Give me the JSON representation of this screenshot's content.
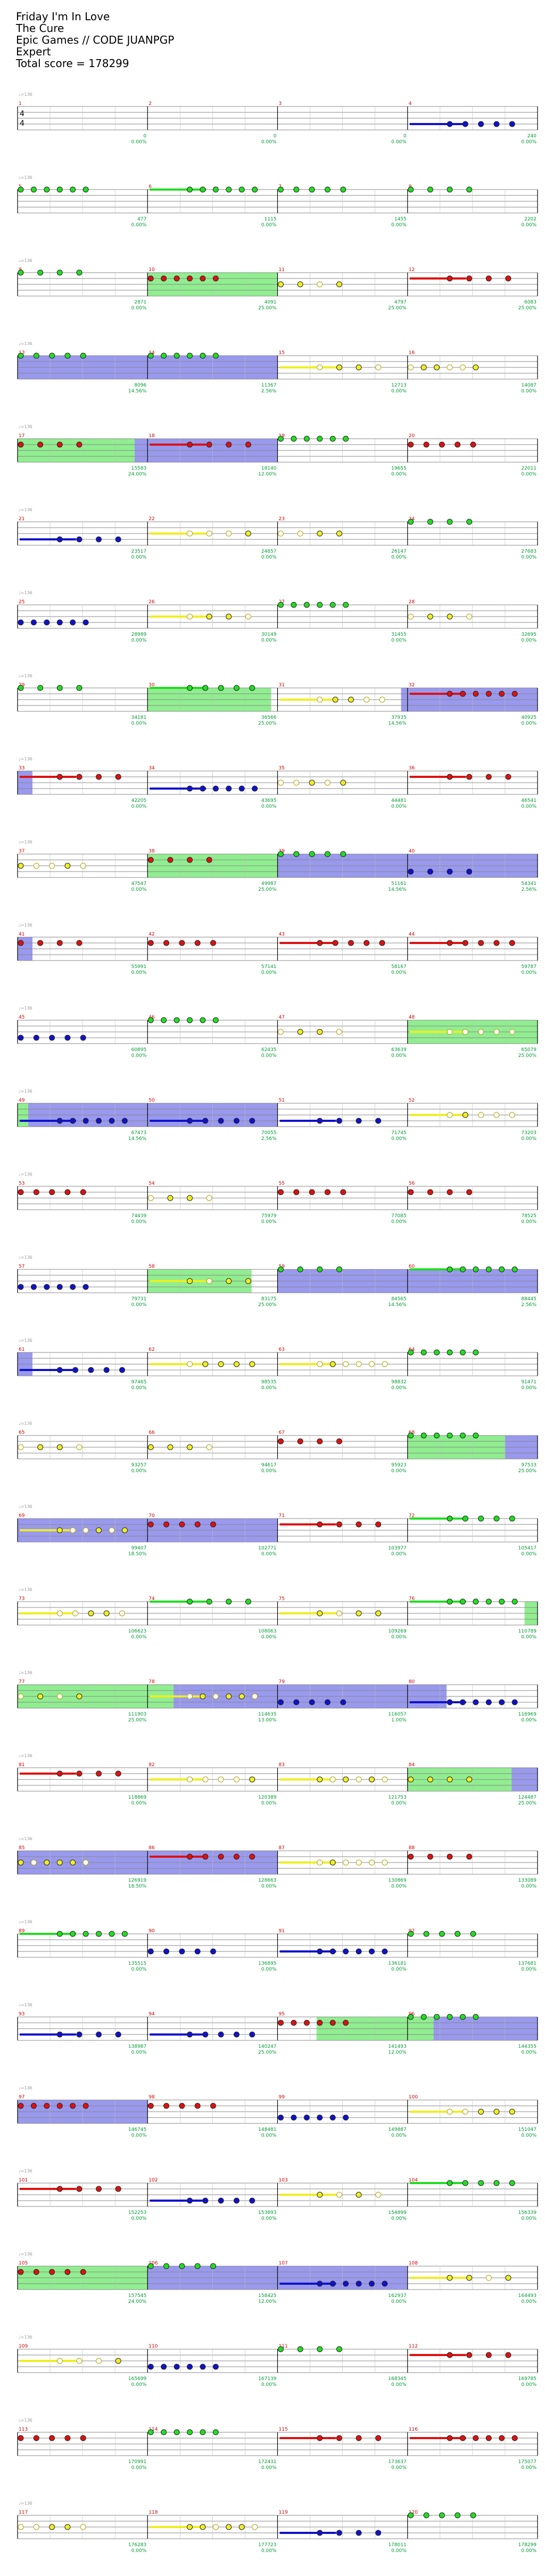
{
  "song": {
    "title": "Friday I'm In Love",
    "artist": "The Cure",
    "charter": "Epic Games // CODE JUANPGP",
    "difficulty": "Expert",
    "total_score_label": "Total score = 178299"
  },
  "tempo_marker": "♩=136",
  "time_signature": [
    "4",
    "4"
  ],
  "colors": {
    "green": "#22dd22",
    "red": "#dd1111",
    "yellow": "#eeee22",
    "blue": "#1111cc",
    "orange": "#ff9900",
    "purple": "#8800aa",
    "starpower_fill": "#90ee90",
    "solo_fill": "#9999ee",
    "measure_number": "#cc0000",
    "score_text": "#009933"
  },
  "measures": [
    {
      "n": "1",
      "score": "0",
      "pct": "0.00%",
      "note": "",
      "stars": "",
      "star_pct": ""
    },
    {
      "n": "2",
      "score": "0",
      "pct": "0.00%",
      "note": "",
      "stars": "",
      "star_pct": ""
    },
    {
      "n": "3",
      "score": "0",
      "pct": "0.00%",
      "note": "",
      "stars": "",
      "star_pct": ""
    },
    {
      "n": "4",
      "score": "240",
      "pct": "0.00%",
      "note": "",
      "stars": "",
      "star_pct": ""
    },
    {
      "n": "5",
      "score": "477",
      "pct": "0.00%",
      "note": "",
      "stars": "",
      "star_pct": ""
    },
    {
      "n": "6",
      "score": "1115",
      "pct": "0.00%",
      "note": "",
      "stars": "",
      "star_pct": ""
    },
    {
      "n": "7",
      "score": "1455",
      "pct": "0.00%",
      "note": "",
      "stars": "",
      "star_pct": ""
    },
    {
      "n": "8",
      "score": "2202",
      "pct": "0.00%",
      "note": "",
      "stars": "",
      "star_pct": ""
    },
    {
      "n": "9",
      "score": "2871",
      "pct": "0.00%",
      "note": "",
      "stars": "",
      "star_pct": ""
    },
    {
      "n": "10",
      "score": "4091",
      "pct": "25.00%",
      "note": "",
      "stars": "",
      "star_pct": ""
    },
    {
      "n": "11",
      "score": "4797",
      "pct": "25.00%",
      "note": "",
      "stars": "",
      "star_pct": ""
    },
    {
      "n": "12",
      "score": "6083",
      "pct": "25.00%",
      "note": "",
      "stars": "",
      "star_pct": ""
    },
    {
      "n": "13",
      "score": "8096",
      "pct": "14.56%",
      "note": "",
      "stars": "",
      "star_pct": ""
    },
    {
      "n": "14",
      "score": "11367",
      "pct": "2.56%",
      "note": "",
      "stars": "",
      "star_pct": ""
    },
    {
      "n": "15",
      "score": "12713",
      "pct": "0.00%",
      "note": "",
      "stars": "",
      "star_pct": ""
    },
    {
      "n": "16",
      "score": "14087",
      "pct": "0.00%",
      "note": "",
      "stars": "",
      "star_pct": ""
    },
    {
      "n": "17",
      "score": "15583",
      "pct": "24.00%",
      "note": "",
      "stars": "",
      "star_pct": ""
    },
    {
      "n": "18",
      "score": "18140",
      "pct": "12.00%",
      "note": "",
      "stars": "",
      "star_pct": ""
    },
    {
      "n": "19",
      "score": "19655",
      "pct": "0.00%",
      "note": "",
      "stars": "",
      "star_pct": ""
    },
    {
      "n": "20",
      "score": "22011",
      "pct": "0.00%",
      "note": "",
      "stars": "",
      "star_pct": ""
    },
    {
      "n": "21",
      "score": "23517",
      "pct": "0.00%",
      "note": "",
      "stars": "",
      "star_pct": ""
    },
    {
      "n": "22",
      "score": "24857",
      "pct": "0.00%",
      "note": "",
      "stars": "",
      "star_pct": ""
    },
    {
      "n": "23",
      "score": "26147",
      "pct": "0.00%",
      "note": "",
      "stars": "",
      "star_pct": ""
    },
    {
      "n": "24",
      "score": "27683",
      "pct": "0.00%",
      "note": "",
      "stars": "",
      "star_pct": ""
    },
    {
      "n": "25",
      "score": "28989",
      "pct": "0.00%",
      "note": "",
      "stars": "",
      "star_pct": ""
    },
    {
      "n": "26",
      "score": "30149",
      "pct": "0.00%",
      "note": "",
      "stars": "",
      "star_pct": ""
    },
    {
      "n": "27",
      "score": "31455",
      "pct": "0.00%",
      "note": "",
      "stars": "",
      "star_pct": ""
    },
    {
      "n": "28",
      "score": "32695",
      "pct": "0.00%",
      "note": "",
      "stars": "",
      "star_pct": ""
    },
    {
      "n": "29",
      "score": "34181",
      "pct": "0.00%",
      "note": "",
      "stars": "",
      "star_pct": ""
    },
    {
      "n": "30",
      "score": "36566",
      "pct": "25.00%",
      "note": "",
      "stars": "",
      "star_pct": ""
    },
    {
      "n": "31",
      "score": "37935",
      "pct": "14.56%",
      "note": "",
      "stars": "",
      "star_pct": ""
    },
    {
      "n": "32",
      "score": "40925",
      "pct": "0.00%",
      "note": "",
      "stars": "",
      "star_pct": ""
    },
    {
      "n": "33",
      "score": "42205",
      "pct": "0.00%",
      "note": "",
      "stars": "",
      "star_pct": ""
    },
    {
      "n": "34",
      "score": "43695",
      "pct": "0.00%",
      "note": "",
      "stars": "",
      "star_pct": ""
    },
    {
      "n": "35",
      "score": "44481",
      "pct": "0.00%",
      "note": "",
      "stars": "",
      "star_pct": ""
    },
    {
      "n": "36",
      "score": "46541",
      "pct": "0.00%",
      "note": "",
      "stars": "",
      "star_pct": ""
    },
    {
      "n": "37",
      "score": "47547",
      "pct": "0.00%",
      "note": "",
      "stars": "",
      "star_pct": ""
    },
    {
      "n": "38",
      "score": "49987",
      "pct": "25.00%",
      "note": "",
      "stars": "",
      "star_pct": ""
    },
    {
      "n": "39",
      "score": "51161",
      "pct": "14.56%",
      "note": "",
      "stars": "",
      "star_pct": ""
    },
    {
      "n": "40",
      "score": "54341",
      "pct": "2.56%",
      "note": "",
      "stars": "",
      "star_pct": ""
    },
    {
      "n": "41",
      "score": "55991",
      "pct": "0.00%",
      "note": "",
      "stars": "",
      "star_pct": ""
    },
    {
      "n": "42",
      "score": "57141",
      "pct": "0.00%",
      "note": "",
      "stars": "",
      "star_pct": ""
    },
    {
      "n": "43",
      "score": "58167",
      "pct": "0.00%",
      "note": "",
      "stars": "",
      "star_pct": ""
    },
    {
      "n": "44",
      "score": "59787",
      "pct": "0.00%",
      "note": "",
      "stars": "",
      "star_pct": ""
    },
    {
      "n": "45",
      "score": "60895",
      "pct": "0.00%",
      "note": "",
      "stars": "",
      "star_pct": ""
    },
    {
      "n": "46",
      "score": "62435",
      "pct": "0.00%",
      "note": "",
      "stars": "",
      "star_pct": ""
    },
    {
      "n": "47",
      "score": "63639",
      "pct": "0.00%",
      "note": "",
      "stars": "",
      "star_pct": ""
    },
    {
      "n": "48",
      "score": "65079",
      "pct": "25.00%",
      "note": "",
      "stars": "",
      "star_pct": ""
    },
    {
      "n": "49",
      "score": "67473",
      "pct": "14.56%",
      "note": "",
      "stars": "",
      "star_pct": ""
    },
    {
      "n": "50",
      "score": "70055",
      "pct": "2.56%",
      "note": "",
      "stars": "",
      "star_pct": ""
    },
    {
      "n": "51",
      "score": "71745",
      "pct": "0.00%",
      "note": "",
      "stars": "",
      "star_pct": ""
    },
    {
      "n": "52",
      "score": "73203",
      "pct": "0.00%",
      "note": "",
      "stars": "",
      "star_pct": ""
    },
    {
      "n": "53",
      "score": "74439",
      "pct": "0.00%",
      "note": "",
      "stars": "",
      "star_pct": ""
    },
    {
      "n": "54",
      "score": "75979",
      "pct": "0.00%",
      "note": "",
      "stars": "",
      "star_pct": ""
    },
    {
      "n": "55",
      "score": "77085",
      "pct": "0.00%",
      "note": "",
      "stars": "",
      "star_pct": ""
    },
    {
      "n": "56",
      "score": "78525",
      "pct": "0.00%",
      "note": "",
      "stars": "",
      "star_pct": ""
    },
    {
      "n": "57",
      "score": "79731",
      "pct": "0.00%",
      "note": "",
      "stars": "",
      "star_pct": ""
    },
    {
      "n": "58",
      "score": "83175",
      "pct": "25.00%",
      "note": "",
      "stars": "",
      "star_pct": ""
    },
    {
      "n": "59",
      "score": "84565",
      "pct": "14.56%",
      "note": "",
      "stars": "",
      "star_pct": ""
    },
    {
      "n": "60",
      "score": "88445",
      "pct": "2.56%",
      "note": "",
      "stars": "",
      "star_pct": ""
    },
    {
      "n": "61",
      "score": "97465",
      "pct": "0.00%",
      "note": "",
      "stars": "",
      "star_pct": ""
    },
    {
      "n": "62",
      "score": "98535",
      "pct": "0.00%",
      "note": "",
      "stars": "",
      "star_pct": ""
    },
    {
      "n": "63",
      "score": "98832",
      "pct": "0.00%",
      "note": "",
      "stars": "",
      "star_pct": ""
    },
    {
      "n": "64",
      "score": "91471",
      "pct": "0.00%",
      "note": "",
      "stars": "",
      "star_pct": ""
    },
    {
      "n": "65",
      "score": "93257",
      "pct": "0.00%",
      "note": "",
      "stars": "",
      "star_pct": ""
    },
    {
      "n": "66",
      "score": "94617",
      "pct": "0.00%",
      "note": "",
      "stars": "",
      "star_pct": ""
    },
    {
      "n": "67",
      "score": "95923",
      "pct": "0.00%",
      "note": "",
      "stars": "",
      "star_pct": ""
    },
    {
      "n": "68",
      "score": "97533",
      "pct": "25.00%",
      "note": "",
      "stars": "",
      "star_pct": ""
    },
    {
      "n": "69",
      "score": "99407",
      "pct": "18.50%",
      "note": "",
      "stars": "",
      "star_pct": ""
    },
    {
      "n": "70",
      "score": "102771",
      "pct": "0.00%",
      "note": "",
      "stars": "",
      "star_pct": ""
    },
    {
      "n": "71",
      "score": "103977",
      "pct": "0.00%",
      "note": "",
      "stars": "",
      "star_pct": ""
    },
    {
      "n": "72",
      "score": "105417",
      "pct": "0.00%",
      "note": "",
      "stars": "",
      "star_pct": ""
    },
    {
      "n": "73",
      "score": "106623",
      "pct": "0.00%",
      "note": "",
      "stars": "",
      "star_pct": ""
    },
    {
      "n": "74",
      "score": "108063",
      "pct": "0.00%",
      "note": "",
      "stars": "",
      "star_pct": ""
    },
    {
      "n": "75",
      "score": "109269",
      "pct": "0.00%",
      "note": "",
      "stars": "",
      "star_pct": ""
    },
    {
      "n": "76",
      "score": "110789",
      "pct": "0.00%",
      "note": "",
      "stars": "",
      "star_pct": ""
    },
    {
      "n": "77",
      "score": "111903",
      "pct": "25.00%",
      "note": "",
      "stars": "",
      "star_pct": ""
    },
    {
      "n": "78",
      "score": "114635",
      "pct": "13.00%",
      "note": "",
      "stars": "",
      "star_pct": ""
    },
    {
      "n": "79",
      "score": "116057",
      "pct": "1.00%",
      "note": "",
      "stars": "",
      "star_pct": ""
    },
    {
      "n": "80",
      "score": "116969",
      "pct": "0.00%",
      "note": "",
      "stars": "",
      "star_pct": ""
    },
    {
      "n": "81",
      "score": "118869",
      "pct": "0.00%",
      "note": "",
      "stars": "",
      "star_pct": ""
    },
    {
      "n": "82",
      "score": "120389",
      "pct": "0.00%",
      "note": "",
      "stars": "",
      "star_pct": ""
    },
    {
      "n": "83",
      "score": "121753",
      "pct": "0.00%",
      "note": "",
      "stars": "",
      "star_pct": ""
    },
    {
      "n": "84",
      "score": "124487",
      "pct": "25.00%",
      "note": "",
      "stars": "",
      "star_pct": ""
    },
    {
      "n": "85",
      "score": "126919",
      "pct": "18.50%",
      "note": "",
      "stars": "",
      "star_pct": ""
    },
    {
      "n": "86",
      "score": "128663",
      "pct": "0.00%",
      "note": "",
      "stars": "",
      "star_pct": ""
    },
    {
      "n": "87",
      "score": "130869",
      "pct": "0.00%",
      "note": "",
      "stars": "",
      "star_pct": ""
    },
    {
      "n": "88",
      "score": "133089",
      "pct": "0.00%",
      "note": "",
      "stars": "",
      "star_pct": ""
    },
    {
      "n": "89",
      "score": "135515",
      "pct": "0.00%",
      "note": "",
      "stars": "",
      "star_pct": ""
    },
    {
      "n": "90",
      "score": "136895",
      "pct": "0.00%",
      "note": "",
      "stars": "",
      "star_pct": ""
    },
    {
      "n": "91",
      "score": "136181",
      "pct": "0.00%",
      "note": "",
      "stars": "",
      "star_pct": ""
    },
    {
      "n": "92",
      "score": "137681",
      "pct": "0.00%",
      "note": "",
      "stars": "",
      "star_pct": ""
    },
    {
      "n": "93",
      "score": "138987",
      "pct": "0.00%",
      "note": "",
      "stars": "",
      "star_pct": ""
    },
    {
      "n": "94",
      "score": "140247",
      "pct": "25.00%",
      "note": "",
      "stars": "",
      "star_pct": ""
    },
    {
      "n": "95",
      "score": "141493",
      "pct": "12.00%",
      "note": "",
      "stars": "",
      "star_pct": ""
    },
    {
      "n": "96",
      "score": "144355",
      "pct": "0.00%",
      "note": "",
      "stars": "",
      "star_pct": ""
    },
    {
      "n": "97",
      "score": "146745",
      "pct": "0.00%",
      "note": "",
      "stars": "",
      "star_pct": ""
    },
    {
      "n": "98",
      "score": "148481",
      "pct": "0.00%",
      "note": "",
      "stars": "",
      "star_pct": ""
    },
    {
      "n": "99",
      "score": "149887",
      "pct": "0.00%",
      "note": "",
      "stars": "",
      "star_pct": ""
    },
    {
      "n": "100",
      "score": "151047",
      "pct": "0.00%",
      "note": "",
      "stars": "",
      "star_pct": ""
    },
    {
      "n": "101",
      "score": "152253",
      "pct": "0.00%",
      "note": "",
      "stars": "",
      "star_pct": ""
    },
    {
      "n": "102",
      "score": "153693",
      "pct": "0.00%",
      "note": "",
      "stars": "",
      "star_pct": ""
    },
    {
      "n": "103",
      "score": "154899",
      "pct": "0.00%",
      "note": "",
      "stars": "",
      "star_pct": ""
    },
    {
      "n": "104",
      "score": "156339",
      "pct": "0.00%",
      "note": "",
      "stars": "",
      "star_pct": ""
    },
    {
      "n": "105",
      "score": "157545",
      "pct": "24.00%",
      "note": "",
      "stars": "",
      "star_pct": ""
    },
    {
      "n": "106",
      "score": "158425",
      "pct": "12.00%",
      "note": "",
      "stars": "",
      "star_pct": ""
    },
    {
      "n": "107",
      "score": "162937",
      "pct": "0.00%",
      "note": "",
      "stars": "",
      "star_pct": ""
    },
    {
      "n": "108",
      "score": "164493",
      "pct": "0.00%",
      "note": "",
      "stars": "",
      "star_pct": ""
    },
    {
      "n": "109",
      "score": "165699",
      "pct": "0.00%",
      "note": "",
      "stars": "",
      "star_pct": ""
    },
    {
      "n": "110",
      "score": "167139",
      "pct": "0.00%",
      "note": "",
      "stars": "",
      "star_pct": ""
    },
    {
      "n": "111",
      "score": "168345",
      "pct": "0.00%",
      "note": "",
      "stars": "",
      "star_pct": ""
    },
    {
      "n": "112",
      "score": "169785",
      "pct": "0.00%",
      "note": "",
      "stars": "",
      "star_pct": ""
    },
    {
      "n": "113",
      "score": "170991",
      "pct": "0.00%",
      "note": "",
      "stars": "",
      "star_pct": ""
    },
    {
      "n": "114",
      "score": "172431",
      "pct": "0.00%",
      "note": "",
      "stars": "",
      "star_pct": ""
    },
    {
      "n": "115",
      "score": "173637",
      "pct": "0.00%",
      "note": "",
      "stars": "",
      "star_pct": ""
    },
    {
      "n": "116",
      "score": "175077",
      "pct": "0.00%",
      "note": "",
      "stars": "",
      "star_pct": ""
    },
    {
      "n": "117",
      "score": "176283",
      "pct": "0.00%",
      "note": "",
      "stars": "",
      "star_pct": ""
    },
    {
      "n": "118",
      "score": "177723",
      "pct": "0.00%",
      "note": "",
      "stars": "",
      "star_pct": ""
    },
    {
      "n": "119",
      "score": "178011",
      "pct": "0.00%",
      "note": "",
      "stars": "",
      "star_pct": ""
    },
    {
      "n": "120",
      "score": "178299",
      "pct": "0.00%",
      "note": "",
      "stars": "",
      "star_pct": ""
    }
  ],
  "row_scores_left": [
    "0",
    "0",
    "2871",
    "8096",
    "15583",
    "23517",
    "28989",
    "34181",
    "42205",
    "47547",
    "55991",
    "60895",
    "67473",
    "74439",
    "79731",
    "97465",
    "93257",
    "99407",
    "106623",
    "111903",
    "118869",
    "126919",
    "135515",
    "138987",
    "146745",
    "152253",
    "157545",
    "165699",
    "170991",
    "176283"
  ]
}
